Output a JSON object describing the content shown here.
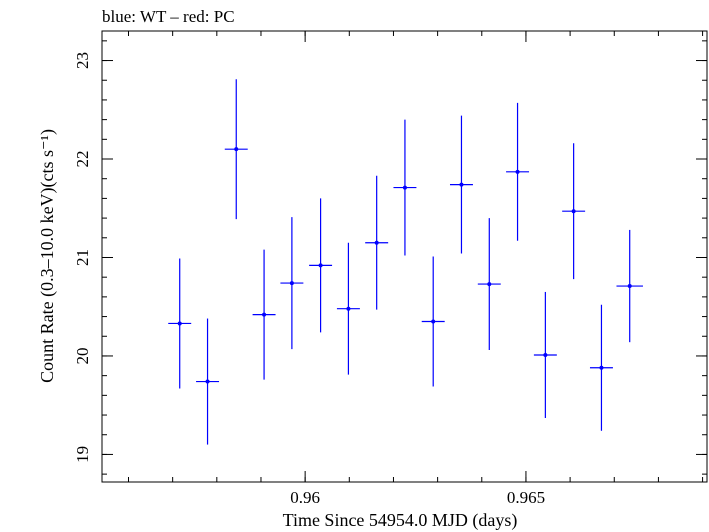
{
  "chart_data": {
    "type": "scatter",
    "title": "blue: WT – red: PC",
    "xlabel": "Time Since 54954.0 MJD (days)",
    "ylabel": "Count Rate (0.3–10.0 keV)(cts s⁻¹)",
    "xlim": [
      0.9554,
      0.9691
    ],
    "ylim": [
      18.72,
      23.3
    ],
    "x_major_ticks": [
      0.96,
      0.965
    ],
    "x_tick_labels": [
      "0.96",
      "0.965"
    ],
    "x_minor_step": 0.001,
    "y_major_ticks": [
      19,
      20,
      21,
      22,
      23
    ],
    "y_tick_labels": [
      "19",
      "20",
      "21",
      "22",
      "23"
    ],
    "y_minor_step": 0.2,
    "grid": false,
    "series": [
      {
        "color": "#0000ff",
        "points": [
          {
            "x": 0.95716,
            "y": 20.33,
            "xerr": 0.00026,
            "yerr": 0.66
          },
          {
            "x": 0.95779,
            "y": 19.74,
            "xerr": 0.00026,
            "yerr": 0.64
          },
          {
            "x": 0.95844,
            "y": 22.1,
            "xerr": 0.00026,
            "yerr": 0.71
          },
          {
            "x": 0.95907,
            "y": 20.42,
            "xerr": 0.00026,
            "yerr": 0.66
          },
          {
            "x": 0.9597,
            "y": 20.74,
            "xerr": 0.00026,
            "yerr": 0.67
          },
          {
            "x": 0.96035,
            "y": 20.92,
            "xerr": 0.00026,
            "yerr": 0.68
          },
          {
            "x": 0.96098,
            "y": 20.48,
            "xerr": 0.00026,
            "yerr": 0.67
          },
          {
            "x": 0.96162,
            "y": 21.15,
            "xerr": 0.00026,
            "yerr": 0.68
          },
          {
            "x": 0.96226,
            "y": 21.71,
            "xerr": 0.00026,
            "yerr": 0.69
          },
          {
            "x": 0.9629,
            "y": 20.35,
            "xerr": 0.00026,
            "yerr": 0.66
          },
          {
            "x": 0.96354,
            "y": 21.74,
            "xerr": 0.00026,
            "yerr": 0.7
          },
          {
            "x": 0.96417,
            "y": 20.73,
            "xerr": 0.00026,
            "yerr": 0.67
          },
          {
            "x": 0.96481,
            "y": 21.87,
            "xerr": 0.00026,
            "yerr": 0.7
          },
          {
            "x": 0.96544,
            "y": 20.01,
            "xerr": 0.00026,
            "yerr": 0.64
          },
          {
            "x": 0.96608,
            "y": 21.47,
            "xerr": 0.00026,
            "yerr": 0.69
          },
          {
            "x": 0.96671,
            "y": 19.88,
            "xerr": 0.00026,
            "yerr": 0.64
          },
          {
            "x": 0.96735,
            "y": 20.71,
            "xerr": 0.0003,
            "yerr": 0.57
          }
        ]
      }
    ]
  }
}
